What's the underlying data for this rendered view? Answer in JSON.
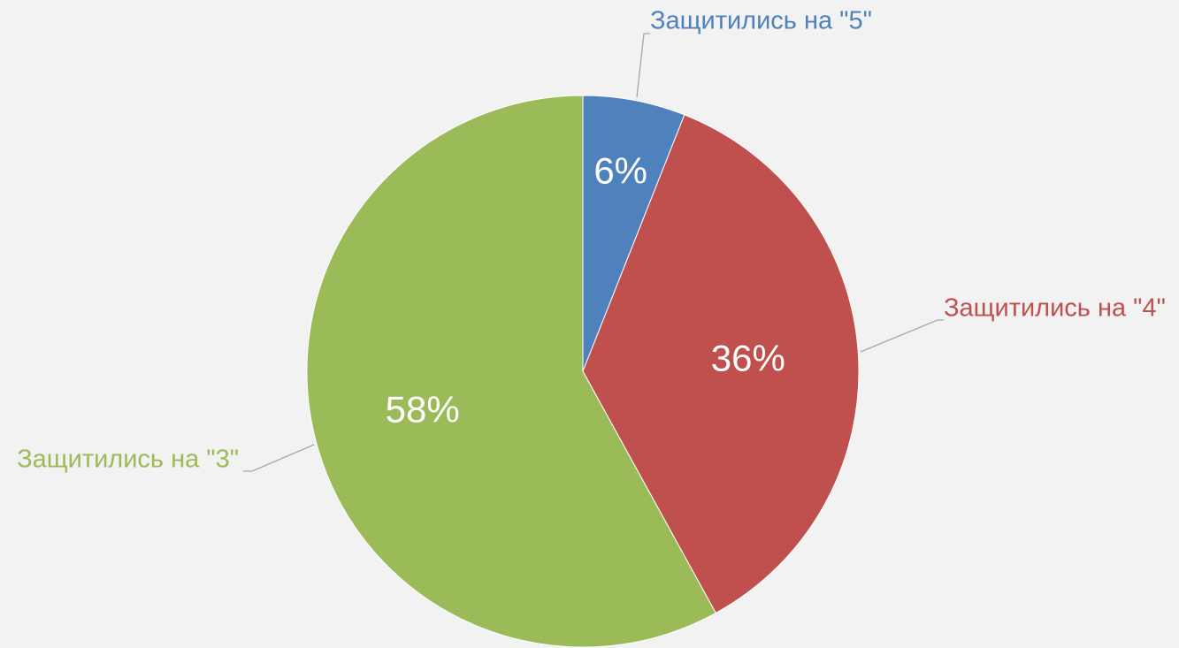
{
  "chart_data": {
    "type": "pie",
    "categories": [
      "Защитились на \"5\"",
      "Защитились на \"4\"",
      "Защитились на \"3\""
    ],
    "values": [
      6,
      36,
      58
    ],
    "value_labels": [
      "6%",
      "36%",
      "58%"
    ],
    "colors": [
      "#4f81bd",
      "#c0504d",
      "#9bbb59"
    ]
  }
}
